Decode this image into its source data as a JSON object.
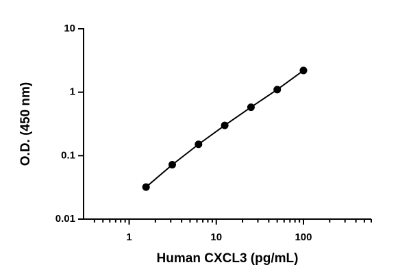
{
  "chart_data": {
    "type": "line",
    "x_label": "Human CXCL3 (pg/mL)",
    "y_label": "O.D. (450 nm)",
    "x": [
      1.5625,
      3.125,
      6.25,
      12.5,
      25,
      50,
      100
    ],
    "series": [
      {
        "color": "#000000",
        "values": [
          0.032,
          0.072,
          0.151,
          0.3,
          0.58,
          1.1,
          2.2
        ]
      }
    ],
    "xlog": true,
    "ylog": true,
    "xlim": [
      0.3,
      600
    ],
    "ylim": [
      0.01,
      10
    ],
    "xticks": [
      1,
      10,
      100
    ],
    "yticks": [
      0.01,
      0.1,
      1,
      10
    ],
    "xminorticks": [
      0.4,
      0.5,
      0.6,
      0.7,
      0.8,
      0.9,
      2,
      3,
      4,
      5,
      6,
      7,
      8,
      9,
      20,
      30,
      40,
      50,
      60,
      70,
      80,
      90,
      200,
      300,
      400,
      500,
      600
    ]
  }
}
